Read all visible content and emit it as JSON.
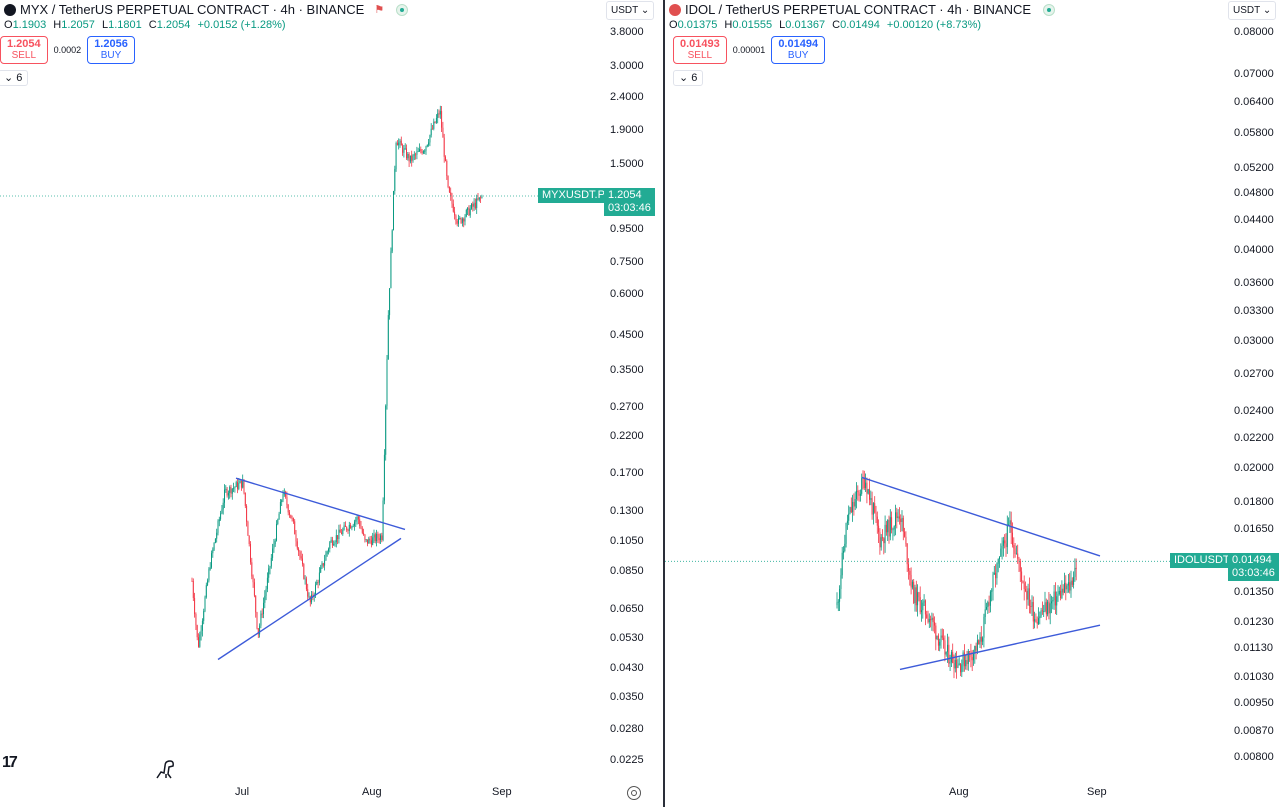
{
  "left": {
    "title": "MYX / TetherUS PERPETUAL CONTRACT · 4h · BINANCE",
    "ohlc": {
      "o": "1.1903",
      "h": "1.2057",
      "l": "1.1801",
      "c": "1.2054",
      "chg": "+0.0152 (+1.28%)"
    },
    "sell_price": "1.2054",
    "sell_label": "SELL",
    "spread": "0.0002",
    "buy_price": "1.2056",
    "buy_label": "BUY",
    "indicators_count": "6",
    "currency": "USDT",
    "price_ticks": [
      "3.8000",
      "3.0000",
      "2.4000",
      "1.9000",
      "1.5000",
      "0.9500",
      "0.7500",
      "0.6000",
      "0.4500",
      "0.3500",
      "0.2700",
      "0.2200",
      "0.1700",
      "0.1300",
      "0.1050",
      "0.0850",
      "0.0650",
      "0.0530",
      "0.0430",
      "0.0350",
      "0.0280",
      "0.0225"
    ],
    "time_ticks": [
      "Jul",
      "Aug",
      "Sep"
    ],
    "symbol_tag": "MYXUSDT.P",
    "last_price": "1.2054",
    "countdown": "03:03:46",
    "color_up": "#089981",
    "color_down": "#f23645",
    "trend_color": "#3d5bd9",
    "tag_color": "#22ab94"
  },
  "right": {
    "title": "IDOL / TetherUS PERPETUAL CONTRACT · 4h · BINANCE",
    "ohlc": {
      "o": "0.01375",
      "h": "0.01555",
      "l": "0.01367",
      "c": "0.01494",
      "chg": "+0.00120 (+8.73%)"
    },
    "sell_price": "0.01493",
    "sell_label": "SELL",
    "spread": "0.00001",
    "buy_price": "0.01494",
    "buy_label": "BUY",
    "indicators_count": "6",
    "currency": "USDT",
    "price_ticks": [
      "0.08000",
      "0.07000",
      "0.06400",
      "0.05800",
      "0.05200",
      "0.04800",
      "0.04400",
      "0.04000",
      "0.03600",
      "0.03300",
      "0.03000",
      "0.02700",
      "0.02400",
      "0.02200",
      "0.02000",
      "0.01800",
      "0.01650",
      "0.01350",
      "0.01230",
      "0.01130",
      "0.01030",
      "0.00950",
      "0.00870",
      "0.00800"
    ],
    "time_ticks": [
      "Aug",
      "Sep"
    ],
    "symbol_tag": "IDOLUSDT.P",
    "last_price": "0.01494",
    "countdown": "03:03:46"
  },
  "chart_data": [
    {
      "type": "candlestick",
      "title": "MYX / TetherUS PERPETUAL CONTRACT · 4h · BINANCE",
      "y_scale": "log",
      "ylim": [
        0.0225,
        3.8
      ],
      "x_ticks": [
        "Jul",
        "Aug",
        "Sep"
      ],
      "close_path": [
        [
          "late Jun",
          0.08
        ],
        [
          "late Jun",
          0.05
        ],
        [
          "early Jul",
          0.09
        ],
        [
          "early Jul",
          0.15
        ],
        [
          "Jul",
          0.16
        ],
        [
          "mid Jul",
          0.055
        ],
        [
          "mid Jul",
          0.15
        ],
        [
          "Jul",
          0.12
        ],
        [
          "late Jul",
          0.068
        ],
        [
          "late Jul",
          0.105
        ],
        [
          "end Jul",
          0.125
        ],
        [
          "end Jul",
          0.105
        ],
        [
          "Aug",
          0.11
        ],
        [
          "early Aug",
          0.5
        ],
        [
          "early Aug",
          1.8
        ],
        [
          "Aug",
          1.55
        ],
        [
          "mid Aug",
          1.7
        ],
        [
          "mid Aug",
          2.2
        ],
        [
          "mid Aug",
          1.25
        ],
        [
          "late Aug",
          1.0
        ],
        [
          "late Aug",
          1.2054
        ]
      ],
      "trendlines": [
        {
          "from": 0.165,
          "to": 0.115
        },
        {
          "from": 0.046,
          "to": 0.108
        }
      ],
      "last_price": 1.2054
    },
    {
      "type": "candlestick",
      "title": "IDOL / TetherUS PERPETUAL CONTRACT · 4h · BINANCE",
      "y_scale": "log",
      "ylim": [
        0.008,
        0.08
      ],
      "x_ticks": [
        "Aug",
        "Sep"
      ],
      "close_path": [
        [
          "late Jul",
          0.013
        ],
        [
          "late Jul",
          0.017
        ],
        [
          "late Jul",
          0.0195
        ],
        [
          "end Jul",
          0.016
        ],
        [
          "end Jul",
          0.0175
        ],
        [
          "early Aug",
          0.0135
        ],
        [
          "early Aug",
          0.0125
        ],
        [
          "Aug",
          0.0112
        ],
        [
          "Aug",
          0.0108
        ],
        [
          "Aug",
          0.0115
        ],
        [
          "mid Aug",
          0.0135
        ],
        [
          "mid Aug",
          0.0168
        ],
        [
          "mid Aug",
          0.0145
        ],
        [
          "late Aug",
          0.0125
        ],
        [
          "late Aug",
          0.013
        ],
        [
          "late Aug",
          0.0135
        ],
        [
          "end Aug",
          0.0138
        ],
        [
          "end Aug",
          0.01494
        ]
      ],
      "trendlines": [
        {
          "from": 0.0195,
          "to": 0.0152
        },
        {
          "from": 0.0106,
          "to": 0.0122
        }
      ],
      "last_price": 0.01494
    }
  ]
}
